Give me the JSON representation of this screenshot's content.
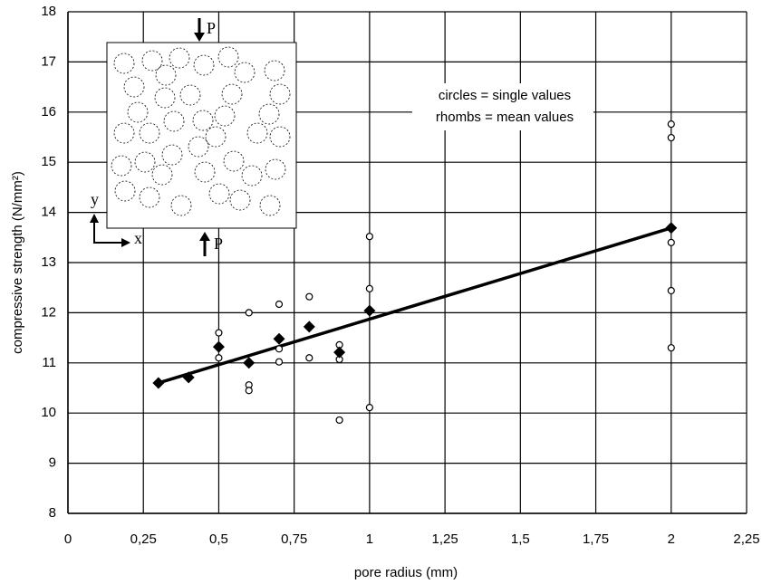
{
  "chart_data": {
    "type": "scatter",
    "x_label": "pore radius (mm)",
    "y_label": "compressive strength (N/mm²)",
    "annotations": [
      "circles = single values",
      "rhombs = mean values"
    ],
    "inset_labels": [
      "P",
      "P",
      "y",
      "x"
    ],
    "xlim": [
      0,
      2.25
    ],
    "ylim": [
      8,
      18
    ],
    "xticks": [
      0,
      {
        "value": 0.25,
        "label": "0,25"
      },
      {
        "value": 0.5,
        "label": "0,5"
      },
      {
        "value": 0.75,
        "label": "0,75"
      },
      1,
      {
        "value": 1.25,
        "label": "1,25"
      },
      {
        "value": 1.5,
        "label": "1,5"
      },
      {
        "value": 1.75,
        "label": "1,75"
      },
      2,
      {
        "value": 2.25,
        "label": "2,25"
      }
    ],
    "yticks": [
      8,
      9,
      10,
      11,
      12,
      13,
      14,
      15,
      16,
      17,
      18
    ],
    "grid": true,
    "series": [
      {
        "marker": "circle",
        "color": "#000000",
        "x": [
          0.5,
          0.5,
          0.6,
          0.6,
          0.6,
          0.7,
          0.7,
          0.7,
          0.8,
          0.8,
          0.9,
          0.9,
          0.9,
          0.9,
          1,
          1,
          1,
          2,
          2,
          2,
          2,
          2
        ],
        "values": [
          11.6,
          11.1,
          12.0,
          10.56,
          10.45,
          12.17,
          11.28,
          11.02,
          12.32,
          11.1,
          11.36,
          11.2,
          11.07,
          9.86,
          13.52,
          12.48,
          10.11,
          15.76,
          15.49,
          13.4,
          12.44,
          11.3
        ]
      },
      {
        "marker": "diamond",
        "color": "#000000",
        "x": [
          0.3,
          0.4,
          0.5,
          0.6,
          0.7,
          0.8,
          0.9,
          1,
          2
        ],
        "values": [
          10.6,
          10.71,
          11.32,
          11.0,
          11.48,
          11.72,
          11.21,
          12.04,
          13.69
        ]
      },
      {
        "marker": "line",
        "color": "#000000",
        "x": [
          0.3,
          2
        ],
        "values": [
          10.6,
          13.69
        ]
      }
    ]
  }
}
